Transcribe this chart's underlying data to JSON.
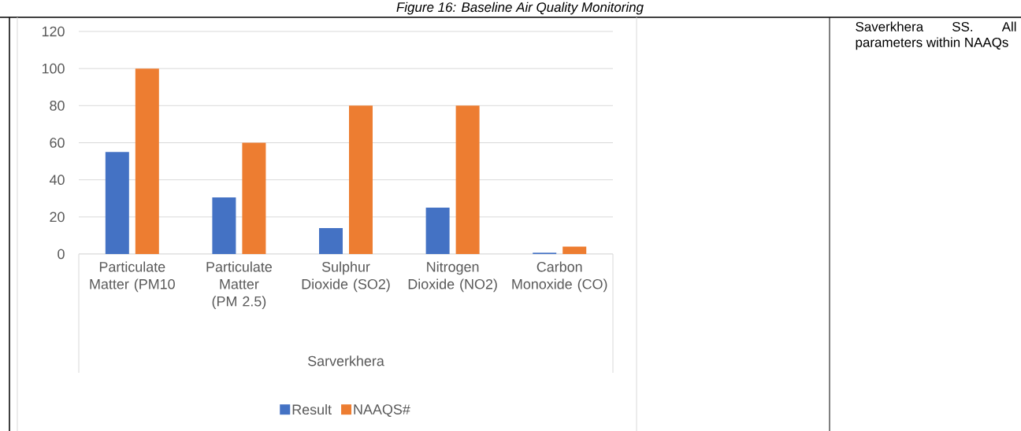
{
  "chart_data": {
    "type": "bar",
    "title": "Figure 16: Baseline Air Quality Monitoring",
    "categories": [
      "Particulate Matter (PM10",
      "Particulate Matter (PM 2.5)",
      "Sulphur Dioxide (SO2)",
      "Nitrogen Dioxide (NO2)",
      "Carbon Monoxide (CO)"
    ],
    "xlabel": "Sarverkhera",
    "series": [
      {
        "name": "Result",
        "color": "#4472c4",
        "values": [
          55,
          30.5,
          14,
          25,
          0.7
        ]
      },
      {
        "name": "NAAQS#",
        "color": "#ed7d31",
        "values": [
          100,
          60,
          80,
          80,
          4
        ]
      }
    ],
    "ylim": [
      0,
      120
    ],
    "yticks": [
      0,
      20,
      40,
      60,
      80,
      100,
      120
    ],
    "grid": "y",
    "legend": "bottom",
    "annotations": [
      "Saverkhera SS. All parameters within NAAQs"
    ]
  }
}
